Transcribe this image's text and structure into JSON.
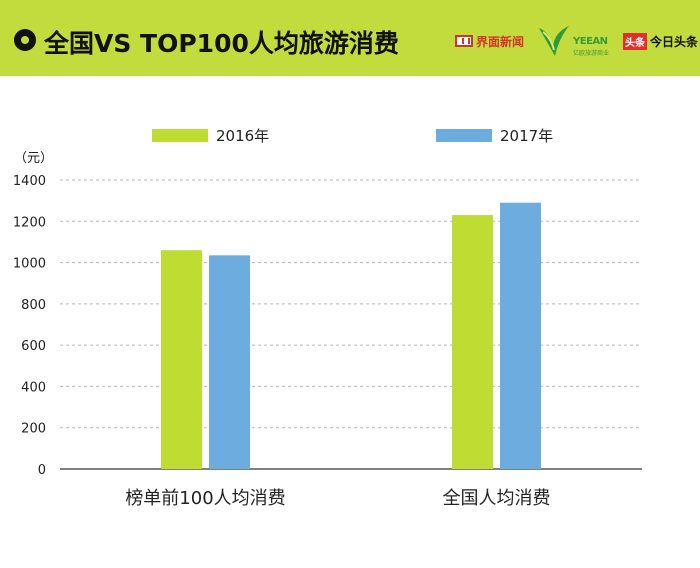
{
  "header": {
    "title": "全国VS TOP100人均旅游消费",
    "logos": {
      "jiemian": "界面新闻",
      "yeean": "YEEAN",
      "yeean_sub": "亿欧旅游商业",
      "toutiao_badge": "头条",
      "toutiao": "今日头条"
    },
    "background_color": "#c1dc3c"
  },
  "chart_data": {
    "type": "bar",
    "ylabel": "（元）",
    "ylim": [
      0,
      1400
    ],
    "yticks": [
      0,
      200,
      400,
      600,
      800,
      1000,
      1200,
      1400
    ],
    "grid": true,
    "legend_position": "top",
    "categories": [
      "榜单前100人均消费",
      "全国人均消费"
    ],
    "series": [
      {
        "name": "2016年",
        "color": "#bfdc33",
        "values": [
          1060,
          1230
        ]
      },
      {
        "name": "2017年",
        "color": "#6dacde",
        "values": [
          1035,
          1290
        ]
      }
    ]
  }
}
